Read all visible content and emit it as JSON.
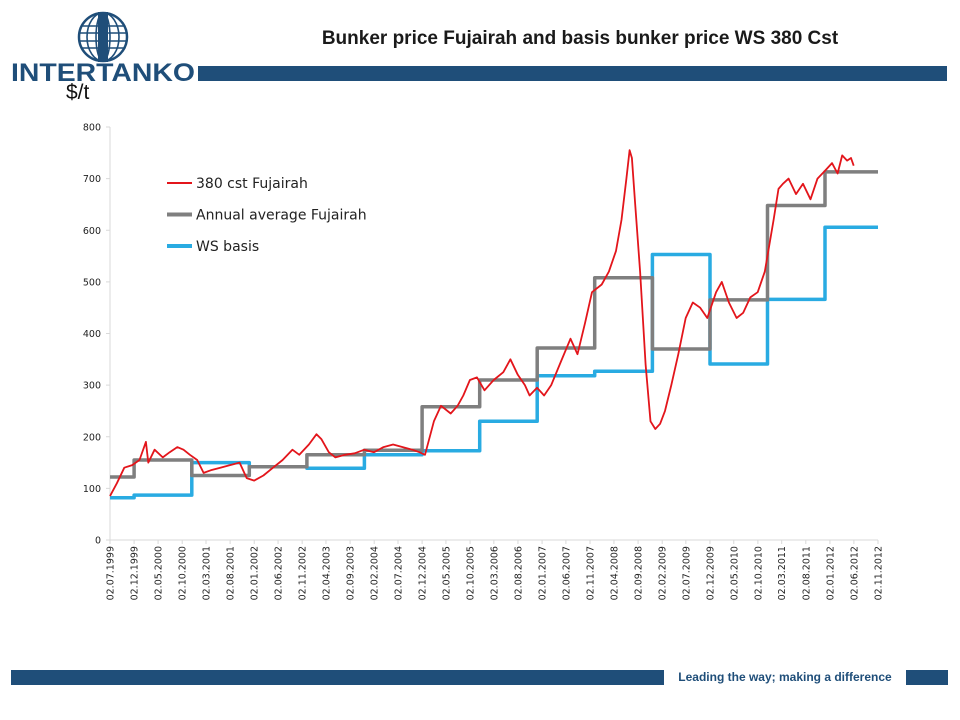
{
  "header": {
    "title": "Bunker price Fujairah and basis bunker price WS 380 Cst",
    "logo_text": "INTERTANKO",
    "unit": "$/t"
  },
  "footer": {
    "tagline": "Leading the way; making a difference"
  },
  "colors": {
    "brand": "#1f4e79",
    "fujairah_380": "#e3151b",
    "annual_average": "#7f7f7f",
    "ws_basis": "#29abe2"
  },
  "chart_data": {
    "type": "line",
    "title": "Bunker price Fujairah and basis bunker price WS 380 Cst",
    "ylabel": "$/t",
    "xlabel": "",
    "ylim": [
      0,
      800
    ],
    "yticks": [
      0,
      100,
      200,
      300,
      400,
      500,
      600,
      700,
      800
    ],
    "xlim": [
      "1999-07-02",
      "2012-11-02"
    ],
    "x_tick_labels": [
      "02.07.1999",
      "02.12.1999",
      "02.05.2000",
      "02.10.2000",
      "02.03.2001",
      "02.08.2001",
      "02.01.2002",
      "02.06.2002",
      "02.11.2002",
      "02.04.2003",
      "02.09.2003",
      "02.02.2004",
      "02.07.2004",
      "02.12.2004",
      "02.05.2005",
      "02.10.2005",
      "02.03.2006",
      "02.08.2006",
      "02.01.2007",
      "02.06.2007",
      "02.11.2007",
      "02.04.2008",
      "02.09.2008",
      "02.02.2009",
      "02.07.2009",
      "02.12.2009",
      "02.05.2010",
      "02.10.2010",
      "02.03.2011",
      "02.08.2011",
      "02.01.2012",
      "02.06.2012",
      "02.11.2012"
    ],
    "grid": false,
    "legend": "top-left",
    "series": [
      {
        "name": "380 cst Fujairah",
        "kind": "line",
        "x": [
          "1999-07-02",
          "1999-08-15",
          "1999-10-01",
          "1999-11-20",
          "2000-01-05",
          "2000-02-15",
          "2000-03-01",
          "2000-04-10",
          "2000-06-01",
          "2000-07-15",
          "2000-09-01",
          "2000-10-10",
          "2000-11-20",
          "2001-01-05",
          "2001-02-15",
          "2001-04-01",
          "2001-06-01",
          "2001-08-01",
          "2001-10-01",
          "2001-11-15",
          "2002-01-02",
          "2002-03-01",
          "2002-05-01",
          "2002-07-01",
          "2002-09-01",
          "2002-10-15",
          "2002-12-15",
          "2003-02-01",
          "2003-03-05",
          "2003-04-20",
          "2003-06-01",
          "2003-08-01",
          "2003-10-01",
          "2003-12-01",
          "2004-02-01",
          "2004-04-01",
          "2004-06-01",
          "2004-08-01",
          "2004-10-01",
          "2004-11-15",
          "2004-12-20",
          "2005-02-15",
          "2005-04-01",
          "2005-06-01",
          "2005-07-15",
          "2005-08-20",
          "2005-10-01",
          "2005-11-15",
          "2006-01-02",
          "2006-03-01",
          "2006-05-01",
          "2006-06-15",
          "2006-08-01",
          "2006-09-15",
          "2006-10-15",
          "2006-12-01",
          "2007-01-15",
          "2007-03-01",
          "2007-05-01",
          "2007-07-01",
          "2007-08-15",
          "2007-10-01",
          "2007-11-15",
          "2008-01-15",
          "2008-03-01",
          "2008-04-15",
          "2008-05-20",
          "2008-06-20",
          "2008-07-10",
          "2008-07-25",
          "2008-08-15",
          "2008-09-15",
          "2008-10-20",
          "2008-11-20",
          "2008-12-20",
          "2009-01-20",
          "2009-02-20",
          "2009-04-01",
          "2009-05-15",
          "2009-07-01",
          "2009-08-15",
          "2009-10-01",
          "2009-11-15",
          "2010-01-10",
          "2010-02-15",
          "2010-04-01",
          "2010-05-20",
          "2010-07-01",
          "2010-08-15",
          "2010-10-01",
          "2010-11-15",
          "2011-01-10",
          "2011-02-10",
          "2011-03-10",
          "2011-04-15",
          "2011-06-01",
          "2011-07-15",
          "2011-09-01",
          "2011-10-15",
          "2011-12-01",
          "2012-01-15",
          "2012-02-20",
          "2012-03-20",
          "2012-04-20",
          "2012-05-15",
          "2012-06-01"
        ],
        "values": [
          85,
          110,
          140,
          145,
          155,
          190,
          150,
          175,
          160,
          170,
          180,
          175,
          165,
          155,
          130,
          135,
          140,
          145,
          150,
          120,
          115,
          125,
          140,
          155,
          175,
          165,
          185,
          205,
          195,
          170,
          160,
          165,
          168,
          175,
          170,
          180,
          185,
          180,
          175,
          170,
          165,
          230,
          260,
          245,
          260,
          280,
          310,
          315,
          290,
          310,
          325,
          350,
          320,
          300,
          280,
          295,
          280,
          300,
          345,
          390,
          360,
          420,
          480,
          495,
          520,
          560,
          620,
          700,
          755,
          740,
          650,
          520,
          340,
          230,
          215,
          225,
          250,
          300,
          360,
          430,
          460,
          450,
          430,
          480,
          500,
          460,
          430,
          440,
          470,
          480,
          520,
          620,
          680,
          690,
          700,
          670,
          690,
          660,
          700,
          715,
          730,
          710,
          745,
          735,
          740,
          725
        ]
      },
      {
        "name": "Annual average Fujairah",
        "kind": "step",
        "breaks": [
          "1999-07-02",
          "1999-12-02",
          "2000-12-02",
          "2001-12-02",
          "2002-12-02",
          "2003-12-02",
          "2004-12-02",
          "2005-12-02",
          "2006-12-02",
          "2007-12-02",
          "2008-12-02",
          "2009-12-02",
          "2010-12-02",
          "2011-12-02",
          "2012-11-02"
        ],
        "values": [
          122,
          155,
          125,
          142,
          165,
          174,
          258,
          310,
          372,
          508,
          370,
          465,
          648,
          713
        ]
      },
      {
        "name": "WS basis",
        "kind": "step",
        "breaks": [
          "1999-07-02",
          "1999-12-02",
          "2000-12-02",
          "2001-12-02",
          "2002-12-02",
          "2003-12-02",
          "2004-12-02",
          "2005-12-02",
          "2006-12-02",
          "2007-12-02",
          "2008-12-02",
          "2009-12-02",
          "2010-12-02",
          "2011-12-02",
          "2012-11-02"
        ],
        "values": [
          82,
          87,
          150,
          142,
          139,
          165,
          173,
          230,
          318,
          327,
          553,
          341,
          466,
          606
        ]
      }
    ]
  }
}
